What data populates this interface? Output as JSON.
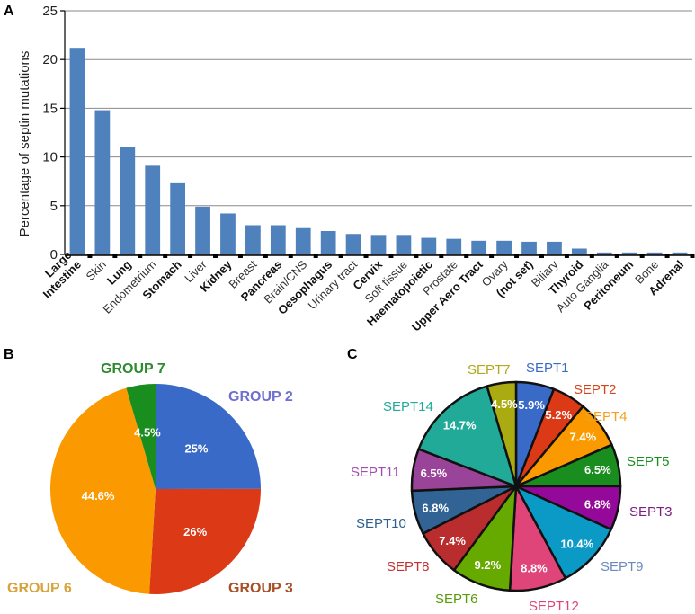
{
  "panels": {
    "a": "A",
    "b": "B",
    "c": "C"
  },
  "chart_data": [
    {
      "type": "bar",
      "panel": "A",
      "ylabel": "Percentage of septin mutations",
      "ylim": [
        0,
        25
      ],
      "yticks": [
        "0",
        "5",
        "10",
        "15",
        "20",
        "25"
      ],
      "grid": true,
      "color": "#4f81bd",
      "categories": [
        {
          "lines": [
            "Large",
            "Intestine"
          ],
          "bold": true,
          "value": 21.2
        },
        {
          "lines": [
            "Skin"
          ],
          "bold": false,
          "value": 14.8
        },
        {
          "lines": [
            "Lung"
          ],
          "bold": true,
          "value": 11.0
        },
        {
          "lines": [
            "Endometrium"
          ],
          "bold": false,
          "value": 9.1
        },
        {
          "lines": [
            "Stomach"
          ],
          "bold": true,
          "value": 7.3
        },
        {
          "lines": [
            "Liver"
          ],
          "bold": false,
          "value": 4.9
        },
        {
          "lines": [
            "Kidney"
          ],
          "bold": true,
          "value": 4.2
        },
        {
          "lines": [
            "Breast"
          ],
          "bold": false,
          "value": 3.0
        },
        {
          "lines": [
            "Pancreas"
          ],
          "bold": true,
          "value": 3.0
        },
        {
          "lines": [
            "Brain/CNS"
          ],
          "bold": false,
          "value": 2.7
        },
        {
          "lines": [
            "Oesophagus"
          ],
          "bold": true,
          "value": 2.4
        },
        {
          "lines": [
            "Urinary tract"
          ],
          "bold": false,
          "value": 2.1
        },
        {
          "lines": [
            "Cervix"
          ],
          "bold": true,
          "value": 2.0
        },
        {
          "lines": [
            "Soft tissue"
          ],
          "bold": false,
          "value": 2.0
        },
        {
          "lines": [
            "Haematopoietic"
          ],
          "bold": true,
          "value": 1.7
        },
        {
          "lines": [
            "Prostate"
          ],
          "bold": false,
          "value": 1.6
        },
        {
          "lines": [
            "Upper Aero Tract"
          ],
          "bold": true,
          "value": 1.4
        },
        {
          "lines": [
            "Ovary"
          ],
          "bold": false,
          "value": 1.4
        },
        {
          "lines": [
            "(not set)"
          ],
          "bold": true,
          "value": 1.3
        },
        {
          "lines": [
            "Biliary"
          ],
          "bold": false,
          "value": 1.3
        },
        {
          "lines": [
            "Thyroid"
          ],
          "bold": true,
          "value": 0.6
        },
        {
          "lines": [
            "Auto Ganglia"
          ],
          "bold": false,
          "value": 0.2
        },
        {
          "lines": [
            "Peritoneum"
          ],
          "bold": true,
          "value": 0.2
        },
        {
          "lines": [
            "Bone"
          ],
          "bold": false,
          "value": 0.2
        },
        {
          "lines": [
            "Adrenal"
          ],
          "bold": true,
          "value": 0.2
        }
      ]
    },
    {
      "type": "pie",
      "panel": "B",
      "slices": [
        {
          "name": "GROUP 2",
          "value": 25,
          "pct_label": "25%",
          "color": "#3a6ac8",
          "label_color": "#6f6fcf"
        },
        {
          "name": "GROUP 3",
          "value": 26,
          "pct_label": "26%",
          "color": "#dc3a16",
          "label_color": "#a84f24"
        },
        {
          "name": "GROUP 6",
          "value": 44.6,
          "pct_label": "44.6%",
          "color": "#fb9a00",
          "label_color": "#d9a23a"
        },
        {
          "name": "GROUP 7",
          "value": 4.5,
          "pct_label": "4.5%",
          "color": "#1a8d1f",
          "label_color": "#2e8b2e"
        }
      ]
    },
    {
      "type": "pie",
      "panel": "C",
      "slices": [
        {
          "name": "SEPT1",
          "value": 5.9,
          "pct_label": "5.9%",
          "color": "#3a6ac8",
          "label_color": "#3a6ac8"
        },
        {
          "name": "SEPT2",
          "value": 5.2,
          "pct_label": "5.2%",
          "color": "#dc3a16",
          "label_color": "#d5441c"
        },
        {
          "name": "SEPT4",
          "value": 7.4,
          "pct_label": "7.4%",
          "color": "#fb9a00",
          "label_color": "#f2a01f"
        },
        {
          "name": "SEPT5",
          "value": 6.5,
          "pct_label": "6.5%",
          "color": "#1a8d1f",
          "label_color": "#1a8d1f"
        },
        {
          "name": "SEPT3",
          "value": 6.8,
          "pct_label": "6.8%",
          "color": "#95099a",
          "label_color": "#7d1f83"
        },
        {
          "name": "SEPT9",
          "value": 10.4,
          "pct_label": "10.4%",
          "color": "#0b9ac6",
          "label_color": "#6b8bbf"
        },
        {
          "name": "SEPT12",
          "value": 8.8,
          "pct_label": "8.8%",
          "color": "#e0457a",
          "label_color": "#d9457a"
        },
        {
          "name": "SEPT6",
          "value": 9.2,
          "pct_label": "9.2%",
          "color": "#66aa00",
          "label_color": "#5a9a0a"
        },
        {
          "name": "SEPT8",
          "value": 7.4,
          "pct_label": "7.4%",
          "color": "#b92d2e",
          "label_color": "#c23232"
        },
        {
          "name": "SEPT10",
          "value": 6.8,
          "pct_label": "6.8%",
          "color": "#316395",
          "label_color": "#2f5f8f"
        },
        {
          "name": "SEPT11",
          "value": 6.5,
          "pct_label": "6.5%",
          "color": "#994499",
          "label_color": "#a04fb0"
        },
        {
          "name": "SEPT14",
          "value": 14.7,
          "pct_label": "14.7%",
          "color": "#22aa99",
          "label_color": "#22aa99"
        },
        {
          "name": "SEPT7",
          "value": 4.5,
          "pct_label": "4.5%",
          "color": "#aaaa11",
          "label_color": "#b0a81a"
        }
      ]
    }
  ]
}
